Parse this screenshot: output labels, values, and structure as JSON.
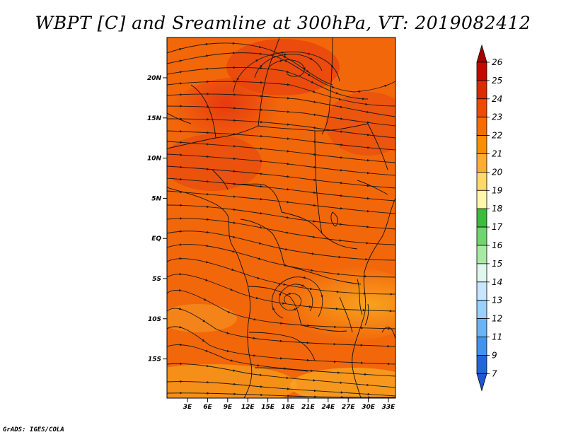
{
  "title": "WBPT [C] and Sreamline at 300hPa, VT: 2019082412",
  "credit": "GrADS: IGES/COLA",
  "map": {
    "lat_ticks": [
      "20N",
      "15N",
      "10N",
      "5N",
      "EQ",
      "5S",
      "10S",
      "15S"
    ],
    "lon_ticks": [
      "3E",
      "6E",
      "9E",
      "12E",
      "15E",
      "18E",
      "21E",
      "24E",
      "27E",
      "30E",
      "33E"
    ]
  },
  "colorbar": {
    "labels": [
      "26",
      "25",
      "24",
      "23",
      "22",
      "21",
      "20",
      "19",
      "18",
      "17",
      "16",
      "15",
      "14",
      "13",
      "12",
      "11",
      "9",
      "7"
    ],
    "colors": [
      "#a50000",
      "#c40a00",
      "#dd2a00",
      "#ef4b00",
      "#f86c00",
      "#fb8e00",
      "#fdae32",
      "#ffd86a",
      "#fff6ad",
      "#3cbc3c",
      "#6fd66f",
      "#a8eaa3",
      "#dff7ec",
      "#c7e6ff",
      "#9ad0ff",
      "#6ab4f6",
      "#4193ee",
      "#2266dd",
      "#1e55d0"
    ]
  }
}
